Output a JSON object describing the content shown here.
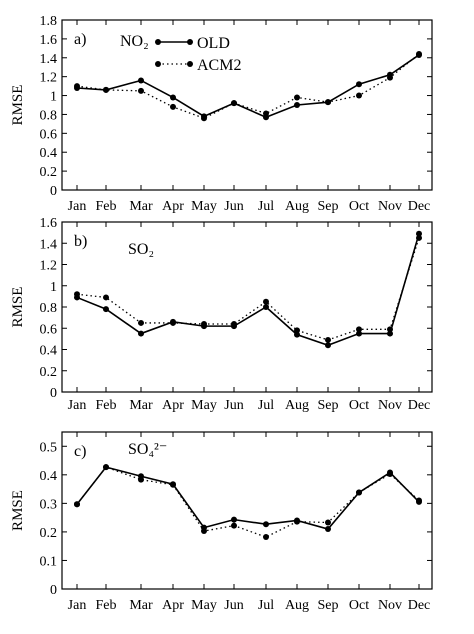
{
  "chart_data": [
    {
      "type": "line",
      "panel_label": "a)",
      "species_label": "NO₂",
      "ylabel": "RMSE",
      "ylim": [
        0,
        1.8
      ],
      "yticks": [
        "0",
        "0.2",
        "0.4",
        "0.6",
        "0.8",
        "1",
        "1.2",
        "1.4",
        "1.6",
        "1.8"
      ],
      "categories": [
        "Jan",
        "Feb",
        "Mar",
        "Apr",
        "May",
        "Jun",
        "Jul",
        "Aug",
        "Sep",
        "Oct",
        "Nov",
        "Dec"
      ],
      "legend_position": "top-left",
      "series": [
        {
          "name": "OLD",
          "style": "solid",
          "values": [
            1.08,
            1.06,
            1.16,
            0.98,
            0.78,
            0.92,
            0.77,
            0.9,
            0.93,
            1.12,
            1.22,
            1.43
          ]
        },
        {
          "name": "ACM2",
          "style": "dotted",
          "values": [
            1.1,
            1.06,
            1.05,
            0.88,
            0.76,
            0.92,
            0.81,
            0.98,
            0.93,
            1.0,
            1.19,
            1.44
          ]
        }
      ]
    },
    {
      "type": "line",
      "panel_label": "b)",
      "species_label": "SO₂",
      "ylabel": "RMSE",
      "ylim": [
        0,
        1.6
      ],
      "yticks": [
        "0",
        "0.2",
        "0.4",
        "0.6",
        "0.8",
        "1",
        "1.2",
        "1.4",
        "1.6"
      ],
      "categories": [
        "Jan",
        "Feb",
        "Mar",
        "Apr",
        "May",
        "Jun",
        "Jul",
        "Aug",
        "Sep",
        "Oct",
        "Nov",
        "Dec"
      ],
      "series": [
        {
          "name": "OLD",
          "style": "solid",
          "values": [
            0.89,
            0.78,
            0.55,
            0.66,
            0.62,
            0.62,
            0.8,
            0.54,
            0.44,
            0.55,
            0.55,
            1.49
          ]
        },
        {
          "name": "ACM2",
          "style": "dotted",
          "values": [
            0.92,
            0.89,
            0.65,
            0.65,
            0.64,
            0.64,
            0.85,
            0.58,
            0.49,
            0.59,
            0.59,
            1.45
          ]
        }
      ]
    },
    {
      "type": "line",
      "panel_label": "c)",
      "species_label": "SO₄²⁻",
      "ylabel": "RMSE",
      "ylim": [
        0,
        0.55
      ],
      "yticks": [
        "0",
        "0.1",
        "0.2",
        "0.3",
        "0.4",
        "0.5"
      ],
      "categories": [
        "Jan",
        "Feb",
        "Mar",
        "Apr",
        "May",
        "Jun",
        "Jul",
        "Aug",
        "Sep",
        "Oct",
        "Nov",
        "Dec"
      ],
      "series": [
        {
          "name": "OLD",
          "style": "solid",
          "values": [
            0.297,
            0.427,
            0.395,
            0.367,
            0.215,
            0.243,
            0.227,
            0.24,
            0.21,
            0.338,
            0.408,
            0.305
          ]
        },
        {
          "name": "ACM2",
          "style": "dotted",
          "values": [
            0.297,
            0.427,
            0.383,
            0.365,
            0.203,
            0.222,
            0.182,
            0.236,
            0.233,
            0.338,
            0.403,
            0.31
          ]
        }
      ]
    }
  ]
}
